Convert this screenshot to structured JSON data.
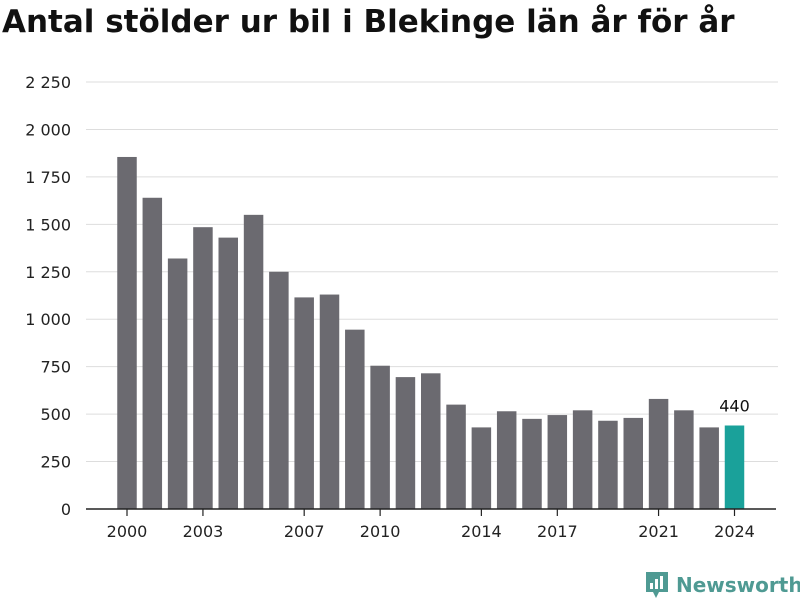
{
  "chart_data": {
    "type": "bar",
    "title": "Antal stölder ur bil i Blekinge län år för år",
    "x": [
      2000,
      2001,
      2002,
      2003,
      2004,
      2005,
      2006,
      2007,
      2008,
      2009,
      2010,
      2011,
      2012,
      2013,
      2014,
      2015,
      2016,
      2017,
      2018,
      2019,
      2020,
      2021,
      2022,
      2023,
      2024
    ],
    "values": [
      1855,
      1640,
      1320,
      1485,
      1430,
      1550,
      1250,
      1115,
      1130,
      945,
      755,
      695,
      715,
      550,
      430,
      515,
      475,
      495,
      520,
      465,
      480,
      580,
      520,
      430,
      440
    ],
    "x_tick_labels": [
      "2000",
      "2003",
      "2007",
      "2010",
      "2014",
      "2017",
      "2021",
      "2024"
    ],
    "y_tick_labels": [
      "0",
      "250",
      "500",
      "750",
      "1 000",
      "1 250",
      "1 500",
      "1 750",
      "2 000",
      "2 250"
    ],
    "ylim": [
      0,
      2250
    ],
    "grid": true,
    "highlight": {
      "x": 2024,
      "label": "440"
    },
    "colors": {
      "bar": "#6b6a70",
      "highlight": "#1aa19a",
      "grid": "#dddddd"
    }
  },
  "brand": {
    "name": "Newsworthy",
    "icon": "newsworthy-logo-icon",
    "color": "#4f9a93"
  }
}
